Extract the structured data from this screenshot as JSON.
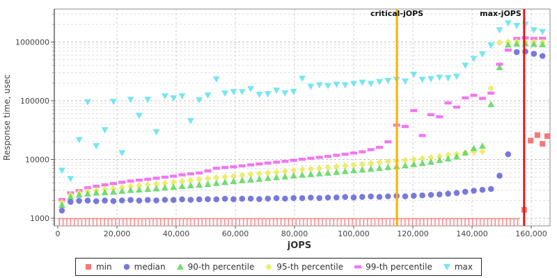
{
  "chart_data": {
    "type": "scatter",
    "title": "",
    "xlabel": "jOPS",
    "ylabel": "Response time, usec",
    "grid": true,
    "legend_position": "bottom-center",
    "x_axis": {
      "scale": "linear",
      "min": 0,
      "max": 166300,
      "ticks": [
        0,
        20000,
        40000,
        60000,
        80000,
        100000,
        120000,
        140000,
        160000
      ],
      "tick_labels": [
        "0",
        "20,000",
        "40,000",
        "60,000",
        "80,000",
        "100,000",
        "120,000",
        "140,000",
        "160,000"
      ]
    },
    "y_axis": {
      "scale": "log",
      "min": 740,
      "max": 3600000,
      "ticks": [
        1000,
        10000,
        100000,
        1000000
      ],
      "tick_labels": [
        "1000",
        "10000",
        "100000",
        "1000000"
      ],
      "minor_grid": true
    },
    "annotations": [
      {
        "id": "critical",
        "label": "critical-jOPS",
        "jops": 114600,
        "color": "#ffae00",
        "label_align": "center"
      },
      {
        "id": "max",
        "label": "max-jOPS",
        "jops": 157600,
        "color": "#e81717",
        "label_align": "end"
      }
    ],
    "x": [
      1400,
      4300,
      7200,
      10100,
      13000,
      15900,
      18800,
      21700,
      24600,
      27500,
      30400,
      33300,
      36200,
      39100,
      42000,
      44900,
      47800,
      50700,
      53600,
      56500,
      59400,
      62300,
      65200,
      68100,
      71000,
      73900,
      76800,
      79700,
      82600,
      85500,
      88400,
      91300,
      94200,
      97100,
      100000,
      102900,
      105800,
      108700,
      111600,
      114500,
      117400,
      120300,
      123200,
      126100,
      129000,
      131900,
      134800,
      137700,
      140600,
      143500,
      146400,
      149300,
      152200,
      155100,
      158000,
      160900,
      163800
    ],
    "series": [
      {
        "key": "min",
        "name": "min",
        "marker": "square",
        "color": "#f95f5f",
        "offscale_low_run": {
          "from_jops": 500,
          "to_jops": 156200,
          "step_jops": 1270,
          "note": "min below 1000 usec, clipped at axis floor"
        },
        "points": [
          [
            157600,
            1390
          ],
          [
            159800,
            21000
          ],
          [
            162100,
            26000
          ],
          [
            163800,
            18500
          ],
          [
            165400,
            25000
          ]
        ]
      },
      {
        "key": "median",
        "name": "median",
        "marker": "circle",
        "color": "#6262d6",
        "values": [
          1350,
          1900,
          1980,
          2000,
          1950,
          2000,
          1960,
          2010,
          2050,
          2000,
          2050,
          2010,
          2060,
          2050,
          2100,
          2060,
          2100,
          2110,
          2100,
          2150,
          2110,
          2150,
          2160,
          2120,
          2160,
          2200,
          2160,
          2210,
          2200,
          2250,
          2210,
          2250,
          2260,
          2300,
          2260,
          2310,
          2350,
          2310,
          2360,
          2400,
          2360,
          2410,
          2450,
          2500,
          2550,
          2620,
          2700,
          2820,
          2950,
          3050,
          3150,
          5300,
          12300,
          675000,
          690000,
          630000,
          580000
        ]
      },
      {
        "key": "p90",
        "name": "90-th percentile",
        "marker": "triangle-up",
        "color": "#5cd65c",
        "values": [
          1680,
          2300,
          2500,
          2600,
          2700,
          2750,
          2820,
          2900,
          3000,
          3060,
          3120,
          3200,
          3300,
          3400,
          3500,
          3600,
          3700,
          3800,
          3950,
          4100,
          4250,
          4400,
          4520,
          4650,
          4800,
          4950,
          5100,
          5280,
          5450,
          5600,
          5750,
          5920,
          6100,
          6300,
          6500,
          6700,
          6900,
          7120,
          7350,
          7620,
          7900,
          8250,
          8650,
          9100,
          9700,
          10300,
          11200,
          13000,
          15500,
          17000,
          87000,
          370000,
          900000,
          930000,
          940000,
          920000,
          910000
        ]
      },
      {
        "key": "p95",
        "name": "95-th percentile",
        "marker": "diamond",
        "color": "#eaea55",
        "values": [
          1870,
          2500,
          2720,
          2850,
          3000,
          3120,
          3240,
          3360,
          3500,
          3610,
          3720,
          3840,
          3960,
          4100,
          4250,
          4400,
          4550,
          4720,
          4900,
          5050,
          5220,
          5400,
          5560,
          5750,
          5920,
          6100,
          6300,
          6500,
          6700,
          6900,
          7100,
          7320,
          7550,
          7800,
          8050,
          8320,
          8600,
          8900,
          9200,
          9400,
          9700,
          10000,
          10400,
          10800,
          11300,
          11900,
          12400,
          13000,
          13400,
          13700,
          163000,
          980000,
          1000000,
          1020000,
          1000000,
          1010000,
          990000
        ]
      },
      {
        "key": "p99",
        "name": "99-th percentile",
        "marker": "hbar",
        "color": "#f35df3",
        "values": [
          2080,
          2700,
          2950,
          3300,
          3500,
          3700,
          3900,
          4100,
          4300,
          4450,
          4600,
          4800,
          5000,
          5200,
          5500,
          5700,
          5900,
          6400,
          7100,
          7300,
          7500,
          7800,
          8100,
          8400,
          8700,
          9000,
          9300,
          9700,
          10100,
          10500,
          10900,
          11300,
          11800,
          12300,
          12900,
          13500,
          14700,
          16100,
          20000,
          38500,
          36400,
          68000,
          25600,
          58000,
          53500,
          92000,
          78000,
          112000,
          124000,
          110000,
          135000,
          420000,
          730000,
          1150000,
          1180000,
          1150000,
          1160000
        ]
      },
      {
        "key": "max",
        "name": "max",
        "marker": "triangle-down",
        "color": "#5fe2ef",
        "values": [
          6500,
          4700,
          21700,
          95000,
          17000,
          31800,
          97000,
          12900,
          105000,
          56000,
          105000,
          29400,
          120000,
          111000,
          120000,
          45500,
          103000,
          124000,
          233000,
          134000,
          142000,
          142000,
          159000,
          128000,
          131000,
          150000,
          135000,
          143000,
          240000,
          175000,
          185000,
          180000,
          190000,
          185000,
          195000,
          205000,
          195000,
          210000,
          220000,
          230000,
          215000,
          280000,
          230000,
          235000,
          250000,
          245000,
          260000,
          400000,
          520000,
          620000,
          880000,
          1600000,
          2100000,
          1900000,
          2000000,
          1600000,
          1500000
        ]
      }
    ]
  }
}
